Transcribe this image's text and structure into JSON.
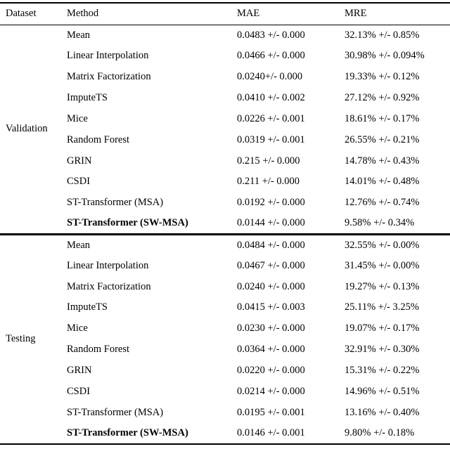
{
  "table": {
    "columns": [
      "Dataset",
      "Method",
      "MAE",
      "MRE"
    ],
    "sections": [
      {
        "dataset": "Validation",
        "rows": [
          {
            "method": "Mean",
            "mae": "0.0483 +/- 0.000",
            "mre": "32.13% +/- 0.85%"
          },
          {
            "method": "Linear Interpolation",
            "mae": "0.0466 +/- 0.000",
            "mre": "30.98% +/- 0.094%"
          },
          {
            "method": "Matrix Factorization",
            "mae": "0.0240+/- 0.000",
            "mre": "19.33% +/- 0.12%"
          },
          {
            "method": "ImputeTS",
            "mae": "0.0410 +/- 0.002",
            "mre": "27.12% +/- 0.92%"
          },
          {
            "method": "Mice",
            "mae": "0.0226 +/- 0.001",
            "mre": "18.61% +/- 0.17%"
          },
          {
            "method": "Random Forest",
            "mae": "0.0319 +/- 0.001",
            "mre": "26.55% +/- 0.21%"
          },
          {
            "method": "GRIN",
            "mae": "0.215 +/- 0.000",
            "mre": "14.78% +/- 0.43%"
          },
          {
            "method": "CSDI",
            "mae": "0.211 +/- 0.000",
            "mre": "14.01% +/- 0.48%"
          },
          {
            "method": "ST-Transformer (MSA)",
            "mae": "0.0192 +/- 0.000",
            "mre": "12.76% +/- 0.74%"
          },
          {
            "method": "ST-Transformer (SW-MSA)",
            "mae": "0.0144 +/- 0.000",
            "mre": "9.58% +/- 0.34%",
            "bold": true
          }
        ]
      },
      {
        "dataset": "Testing",
        "rows": [
          {
            "method": "Mean",
            "mae": "0.0484 +/- 0.000",
            "mre": "32.55% +/- 0.00%"
          },
          {
            "method": "Linear Interpolation",
            "mae": "0.0467 +/- 0.000",
            "mre": "31.45% +/- 0.00%"
          },
          {
            "method": "Matrix Factorization",
            "mae": "0.0240 +/- 0.000",
            "mre": "19.27% +/- 0.13%"
          },
          {
            "method": "ImputeTS",
            "mae": "0.0415 +/- 0.003",
            "mre": "25.11% +/- 3.25%"
          },
          {
            "method": "Mice",
            "mae": "0.0230 +/- 0.000",
            "mre": "19.07% +/- 0.17%"
          },
          {
            "method": "Random Forest",
            "mae": "0.0364 +/- 0.000",
            "mre": "32.91% +/- 0.30%"
          },
          {
            "method": "GRIN",
            "mae": "0.0220 +/- 0.000",
            "mre": "15.31% +/- 0.22%"
          },
          {
            "method": "CSDI",
            "mae": "0.0214 +/- 0.000",
            "mre": "14.96% +/- 0.51%"
          },
          {
            "method": "ST-Transformer (MSA)",
            "mae": "0.0195 +/- 0.001",
            "mre": "13.16% +/- 0.40%"
          },
          {
            "method": "ST-Transformer (SW-MSA)",
            "mae": "0.0146 +/- 0.001",
            "mre": "9.80% +/- 0.18%",
            "bold": true
          }
        ]
      }
    ]
  }
}
